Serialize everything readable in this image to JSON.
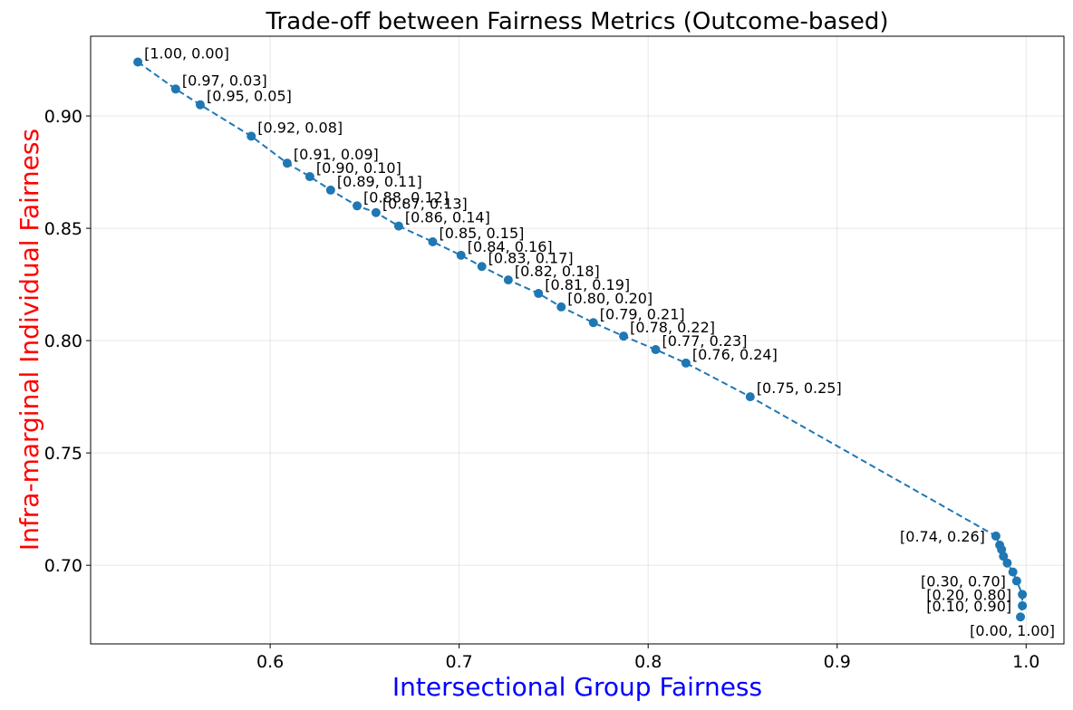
{
  "chart_data": {
    "type": "scatter",
    "title": "Trade-off between Fairness Metrics (Outcome-based)",
    "xlabel": "Intersectional Group Fairness",
    "ylabel": "Infra-marginal Individual Fairness",
    "xlim": [
      0.505,
      1.02
    ],
    "ylim": [
      0.665,
      0.9355
    ],
    "xticks": [
      0.6,
      0.7,
      0.8,
      0.9,
      1.0
    ],
    "xtick_labels": [
      "0.6",
      "0.7",
      "0.8",
      "0.9",
      "1.0"
    ],
    "yticks": [
      0.7,
      0.75,
      0.8,
      0.85,
      0.9
    ],
    "ytick_labels": [
      "0.70",
      "0.75",
      "0.80",
      "0.85",
      "0.90"
    ],
    "grid": true,
    "line_style": "dashed",
    "color": "#1f77b4",
    "points": [
      {
        "x": 0.53,
        "y": 0.924,
        "label": "[1.00, 0.00]"
      },
      {
        "x": 0.55,
        "y": 0.912,
        "label": "[0.97, 0.03]"
      },
      {
        "x": 0.563,
        "y": 0.905,
        "label": "[0.95, 0.05]"
      },
      {
        "x": 0.59,
        "y": 0.891,
        "label": "[0.92, 0.08]"
      },
      {
        "x": 0.609,
        "y": 0.879,
        "label": "[0.91, 0.09]"
      },
      {
        "x": 0.621,
        "y": 0.873,
        "label": "[0.90, 0.10]"
      },
      {
        "x": 0.632,
        "y": 0.867,
        "label": "[0.89, 0.11]"
      },
      {
        "x": 0.646,
        "y": 0.86,
        "label": "[0.88, 0.12]"
      },
      {
        "x": 0.656,
        "y": 0.857,
        "label": "[0.87, 0.13]"
      },
      {
        "x": 0.668,
        "y": 0.851,
        "label": "[0.86, 0.14]"
      },
      {
        "x": 0.686,
        "y": 0.844,
        "label": "[0.85, 0.15]"
      },
      {
        "x": 0.701,
        "y": 0.838,
        "label": "[0.84, 0.16]"
      },
      {
        "x": 0.712,
        "y": 0.833,
        "label": "[0.83, 0.17]"
      },
      {
        "x": 0.726,
        "y": 0.827,
        "label": "[0.82, 0.18]"
      },
      {
        "x": 0.742,
        "y": 0.821,
        "label": "[0.81, 0.19]"
      },
      {
        "x": 0.754,
        "y": 0.815,
        "label": "[0.80, 0.20]"
      },
      {
        "x": 0.771,
        "y": 0.808,
        "label": "[0.79, 0.21]"
      },
      {
        "x": 0.787,
        "y": 0.802,
        "label": "[0.78, 0.22]"
      },
      {
        "x": 0.804,
        "y": 0.796,
        "label": "[0.77, 0.23]"
      },
      {
        "x": 0.82,
        "y": 0.79,
        "label": "[0.76, 0.24]"
      },
      {
        "x": 0.854,
        "y": 0.775,
        "label": "[0.75, 0.25]"
      },
      {
        "x": 0.984,
        "y": 0.713,
        "label": "[0.74, 0.26]"
      },
      {
        "x": 0.986,
        "y": 0.709,
        "label": ""
      },
      {
        "x": 0.987,
        "y": 0.707,
        "label": ""
      },
      {
        "x": 0.988,
        "y": 0.704,
        "label": ""
      },
      {
        "x": 0.99,
        "y": 0.701,
        "label": ""
      },
      {
        "x": 0.993,
        "y": 0.697,
        "label": ""
      },
      {
        "x": 0.995,
        "y": 0.693,
        "label": "[0.30, 0.70]"
      },
      {
        "x": 0.998,
        "y": 0.687,
        "label": "[0.20, 0.80]"
      },
      {
        "x": 0.998,
        "y": 0.682,
        "label": "[0.10, 0.90]"
      },
      {
        "x": 0.997,
        "y": 0.677,
        "label": "[0.00, 1.00]"
      }
    ]
  }
}
